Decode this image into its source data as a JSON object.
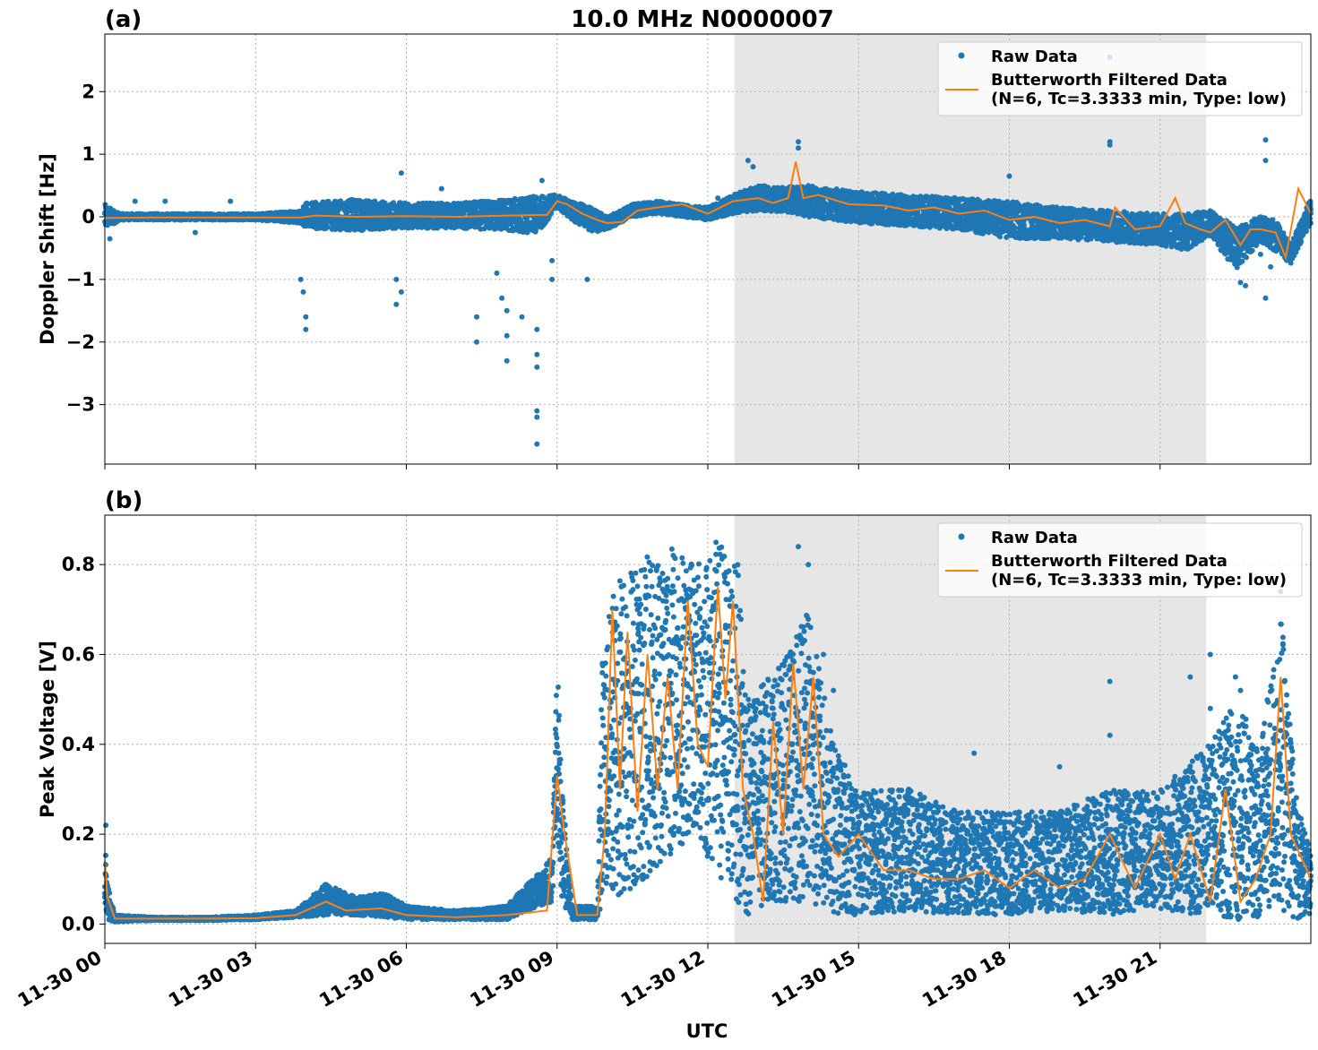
{
  "figure": {
    "title": "10.0 MHz N0000007",
    "xlabel": "UTC",
    "x_tick_labels": [
      "11-30 00",
      "11-30 03",
      "11-30 06",
      "11-30 09",
      "11-30 12",
      "11-30 15",
      "11-30 18",
      "11-30 21"
    ],
    "x_tick_hours": [
      0,
      3,
      6,
      9,
      12,
      15,
      18,
      21
    ],
    "xlim_hours": [
      0,
      24
    ],
    "shaded_interval_hours": [
      12.53,
      21.92
    ],
    "shade_color": "#e6e6e6",
    "colors": {
      "raw": "#1f77b4",
      "filtered": "#ff7f0e"
    }
  },
  "legend": {
    "raw": "Raw Data",
    "filtered_line1": "Butterworth Filtered Data",
    "filtered_line2": "(N=6, Tc=3.3333 min, Type: low)"
  },
  "chart_data": [
    {
      "type": "scatter",
      "panel_label": "(a)",
      "ylabel": "Doppler Shift [Hz]",
      "ylim": [
        -3.95,
        2.92
      ],
      "y_ticks": [
        -3,
        -2,
        -1,
        0,
        1,
        2
      ],
      "y_tick_labels": [
        "−3",
        "−2",
        "−1",
        "0",
        "1",
        "2"
      ],
      "grid": true,
      "legend_position": "top-right",
      "x_units": "hours UTC since 11-30 00:00",
      "series": [
        {
          "name": "Raw Data",
          "kind": "points",
          "band_x": [
            0,
            0.3,
            1,
            2,
            3,
            3.9,
            4,
            5,
            6,
            7,
            8,
            8.6,
            9,
            9.3,
            9.7,
            10,
            10.5,
            11,
            12,
            12.5,
            13,
            13.5,
            14,
            15,
            16,
            17,
            18,
            19,
            20,
            21,
            21.5,
            22,
            22.5,
            23,
            23.3,
            23.6,
            24
          ],
          "band_center": [
            0,
            0,
            0,
            0,
            0,
            0,
            0.02,
            0.03,
            0.02,
            0.02,
            0.03,
            0.03,
            0.25,
            0.1,
            -0.05,
            -0.1,
            0.1,
            0.15,
            0.05,
            0.2,
            0.3,
            0.28,
            0.25,
            0.15,
            0.1,
            0.05,
            -0.05,
            -0.1,
            -0.15,
            -0.2,
            -0.25,
            -0.1,
            -0.5,
            -0.2,
            -0.3,
            -0.6,
            0.1
          ],
          "band_halfwidth": [
            0.2,
            0.05,
            0.05,
            0.05,
            0.05,
            0.1,
            0.2,
            0.25,
            0.2,
            0.2,
            0.25,
            0.3,
            0.1,
            0.15,
            0.2,
            0.1,
            0.1,
            0.1,
            0.1,
            0.15,
            0.2,
            0.2,
            0.25,
            0.25,
            0.25,
            0.25,
            0.3,
            0.25,
            0.25,
            0.25,
            0.3,
            0.2,
            0.35,
            0.2,
            0.25,
            0.15,
            0.2
          ],
          "outliers": [
            [
              0.1,
              -0.35
            ],
            [
              0.6,
              0.25
            ],
            [
              1.2,
              0.25
            ],
            [
              1.8,
              -0.25
            ],
            [
              2.5,
              0.25
            ],
            [
              3.9,
              -1.0
            ],
            [
              3.95,
              -1.2
            ],
            [
              4.0,
              -1.6
            ],
            [
              4.0,
              -1.8
            ],
            [
              5.8,
              -1.0
            ],
            [
              5.8,
              -1.4
            ],
            [
              5.9,
              -1.2
            ],
            [
              5.9,
              0.7
            ],
            [
              6.7,
              0.45
            ],
            [
              7.4,
              -1.6
            ],
            [
              7.4,
              -2.0
            ],
            [
              7.8,
              -0.9
            ],
            [
              7.9,
              -1.3
            ],
            [
              8.0,
              -1.5
            ],
            [
              8.0,
              -1.9
            ],
            [
              8.0,
              -2.3
            ],
            [
              8.3,
              -1.6
            ],
            [
              8.6,
              -1.8
            ],
            [
              8.6,
              -2.2
            ],
            [
              8.6,
              -2.4
            ],
            [
              8.6,
              -3.1
            ],
            [
              8.6,
              -3.2
            ],
            [
              8.6,
              -3.63
            ],
            [
              8.7,
              0.58
            ],
            [
              8.9,
              -0.7
            ],
            [
              8.9,
              -1.0
            ],
            [
              9.6,
              -1.0
            ],
            [
              12.2,
              0.3
            ],
            [
              12.8,
              0.9
            ],
            [
              12.9,
              0.8
            ],
            [
              13.8,
              1.1
            ],
            [
              13.8,
              1.2
            ],
            [
              18.0,
              0.65
            ],
            [
              20.0,
              1.2
            ],
            [
              20.0,
              1.15
            ],
            [
              20.0,
              2.55
            ],
            [
              22.6,
              -1.05
            ],
            [
              22.7,
              -1.1
            ],
            [
              23.0,
              -0.6
            ],
            [
              23.1,
              -1.3
            ],
            [
              23.1,
              0.9
            ],
            [
              23.1,
              1.23
            ],
            [
              23.2,
              -0.8
            ]
          ]
        },
        {
          "name": "Butterworth Filtered Data\n(N=6, Tc=3.3333 min, Type: low)",
          "kind": "line",
          "x": [
            0,
            1,
            2,
            3,
            3.9,
            4.2,
            5,
            6,
            7,
            8,
            8.8,
            9.0,
            9.2,
            9.5,
            9.8,
            10,
            10.3,
            10.6,
            11,
            11.5,
            12,
            12.5,
            13,
            13.3,
            13.6,
            13.75,
            13.9,
            14.2,
            14.8,
            15.5,
            16,
            16.5,
            17,
            17.5,
            18,
            18.5,
            19,
            19.5,
            20,
            20.1,
            20.5,
            21,
            21.3,
            21.5,
            21.8,
            22,
            22.3,
            22.6,
            22.8,
            23,
            23.3,
            23.5,
            23.75,
            24
          ],
          "y": [
            -0.02,
            -0.01,
            -0.01,
            -0.01,
            -0.01,
            0.02,
            0.0,
            0.01,
            0.0,
            0.02,
            0.03,
            0.25,
            0.2,
            0.05,
            -0.05,
            -0.1,
            -0.08,
            0.1,
            0.15,
            0.2,
            0.05,
            0.25,
            0.3,
            0.22,
            0.3,
            0.88,
            0.3,
            0.35,
            0.2,
            0.18,
            0.1,
            0.15,
            0.05,
            0.1,
            -0.05,
            0.0,
            -0.1,
            -0.05,
            -0.15,
            0.15,
            -0.2,
            -0.15,
            0.3,
            -0.1,
            -0.2,
            -0.25,
            -0.05,
            -0.45,
            -0.2,
            -0.2,
            -0.25,
            -0.65,
            0.45,
            0.05
          ]
        }
      ]
    },
    {
      "type": "scatter",
      "panel_label": "(b)",
      "ylabel": "Peak Voltage [V]",
      "ylim": [
        -0.043,
        0.91
      ],
      "y_ticks": [
        0.0,
        0.2,
        0.4,
        0.6,
        0.8
      ],
      "y_tick_labels": [
        "0.0",
        "0.2",
        "0.4",
        "0.6",
        "0.8"
      ],
      "grid": true,
      "legend_position": "top-right",
      "x_units": "hours UTC since 11-30 00:00",
      "series": [
        {
          "name": "Raw Data",
          "kind": "points",
          "band_x": [
            0,
            0.05,
            0.2,
            1,
            2,
            3,
            3.8,
            4.4,
            5,
            5.6,
            6,
            7,
            8,
            8.9,
            9.0,
            9.1,
            9.3,
            9.8,
            9.9,
            10.2,
            10.8,
            11.2,
            11.7,
            12.2,
            12.6,
            12.8,
            13.2,
            13.6,
            14.0,
            14.5,
            15,
            16,
            17,
            18,
            19,
            20,
            21,
            21.5,
            22,
            22.5,
            23,
            23.4,
            23.7,
            24
          ],
          "band_lo": [
            0.05,
            0.01,
            0.005,
            0.008,
            0.008,
            0.01,
            0.015,
            0.02,
            0.02,
            0.015,
            0.01,
            0.01,
            0.01,
            0.05,
            0.2,
            0.05,
            0.01,
            0.01,
            0.05,
            0.05,
            0.1,
            0.15,
            0.2,
            0.1,
            0.05,
            0.01,
            0.05,
            0.05,
            0.05,
            0.02,
            0.02,
            0.03,
            0.02,
            0.02,
            0.03,
            0.02,
            0.03,
            0.02,
            0.02,
            0.01,
            0.01,
            0.03,
            0.01,
            0.02
          ],
          "band_hi": [
            0.2,
            0.09,
            0.02,
            0.015,
            0.015,
            0.02,
            0.03,
            0.09,
            0.06,
            0.07,
            0.04,
            0.03,
            0.04,
            0.15,
            0.6,
            0.3,
            0.04,
            0.04,
            0.6,
            0.8,
            0.82,
            0.86,
            0.8,
            0.86,
            0.8,
            0.5,
            0.55,
            0.6,
            0.7,
            0.4,
            0.3,
            0.3,
            0.25,
            0.25,
            0.25,
            0.3,
            0.3,
            0.35,
            0.4,
            0.5,
            0.4,
            0.7,
            0.3,
            0.15
          ],
          "outliers": [
            [
              0.02,
              0.22
            ],
            [
              13.8,
              0.84
            ],
            [
              14.0,
              0.8
            ],
            [
              14.3,
              0.6
            ],
            [
              14.5,
              0.52
            ],
            [
              16.0,
              0.3
            ],
            [
              17.3,
              0.38
            ],
            [
              19.0,
              0.35
            ],
            [
              20.0,
              0.54
            ],
            [
              20.0,
              0.42
            ],
            [
              21.6,
              0.55
            ],
            [
              22.0,
              0.6
            ],
            [
              22.6,
              0.52
            ],
            [
              22.5,
              0.55
            ],
            [
              22.0,
              0.48
            ],
            [
              23.4,
              0.74
            ]
          ]
        },
        {
          "name": "Butterworth Filtered Data\n(N=6, Tc=3.3333 min, Type: low)",
          "kind": "line",
          "x": [
            0,
            0.05,
            0.2,
            1,
            2,
            3,
            3.8,
            4.4,
            4.8,
            5.5,
            6,
            7,
            8,
            8.8,
            9.0,
            9.15,
            9.4,
            9.8,
            9.95,
            10.1,
            10.25,
            10.4,
            10.6,
            10.8,
            11.0,
            11.2,
            11.4,
            11.6,
            11.8,
            12.0,
            12.2,
            12.35,
            12.5,
            12.7,
            12.9,
            13.1,
            13.3,
            13.5,
            13.7,
            13.9,
            14.1,
            14.3,
            14.6,
            15.0,
            15.5,
            16,
            16.5,
            17,
            17.5,
            18,
            18.5,
            19,
            19.5,
            20,
            20.5,
            21,
            21.3,
            21.6,
            22,
            22.3,
            22.6,
            22.9,
            23.2,
            23.4,
            23.6,
            23.8,
            24
          ],
          "y": [
            0.14,
            0.06,
            0.012,
            0.012,
            0.012,
            0.013,
            0.02,
            0.05,
            0.03,
            0.035,
            0.02,
            0.015,
            0.02,
            0.03,
            0.33,
            0.2,
            0.02,
            0.02,
            0.2,
            0.7,
            0.3,
            0.65,
            0.25,
            0.6,
            0.3,
            0.55,
            0.3,
            0.72,
            0.4,
            0.35,
            0.75,
            0.5,
            0.72,
            0.3,
            0.2,
            0.05,
            0.45,
            0.2,
            0.58,
            0.3,
            0.55,
            0.2,
            0.15,
            0.2,
            0.12,
            0.12,
            0.1,
            0.1,
            0.12,
            0.08,
            0.12,
            0.08,
            0.1,
            0.2,
            0.08,
            0.2,
            0.1,
            0.2,
            0.05,
            0.3,
            0.05,
            0.1,
            0.2,
            0.55,
            0.2,
            0.15,
            0.1
          ]
        }
      ]
    }
  ]
}
